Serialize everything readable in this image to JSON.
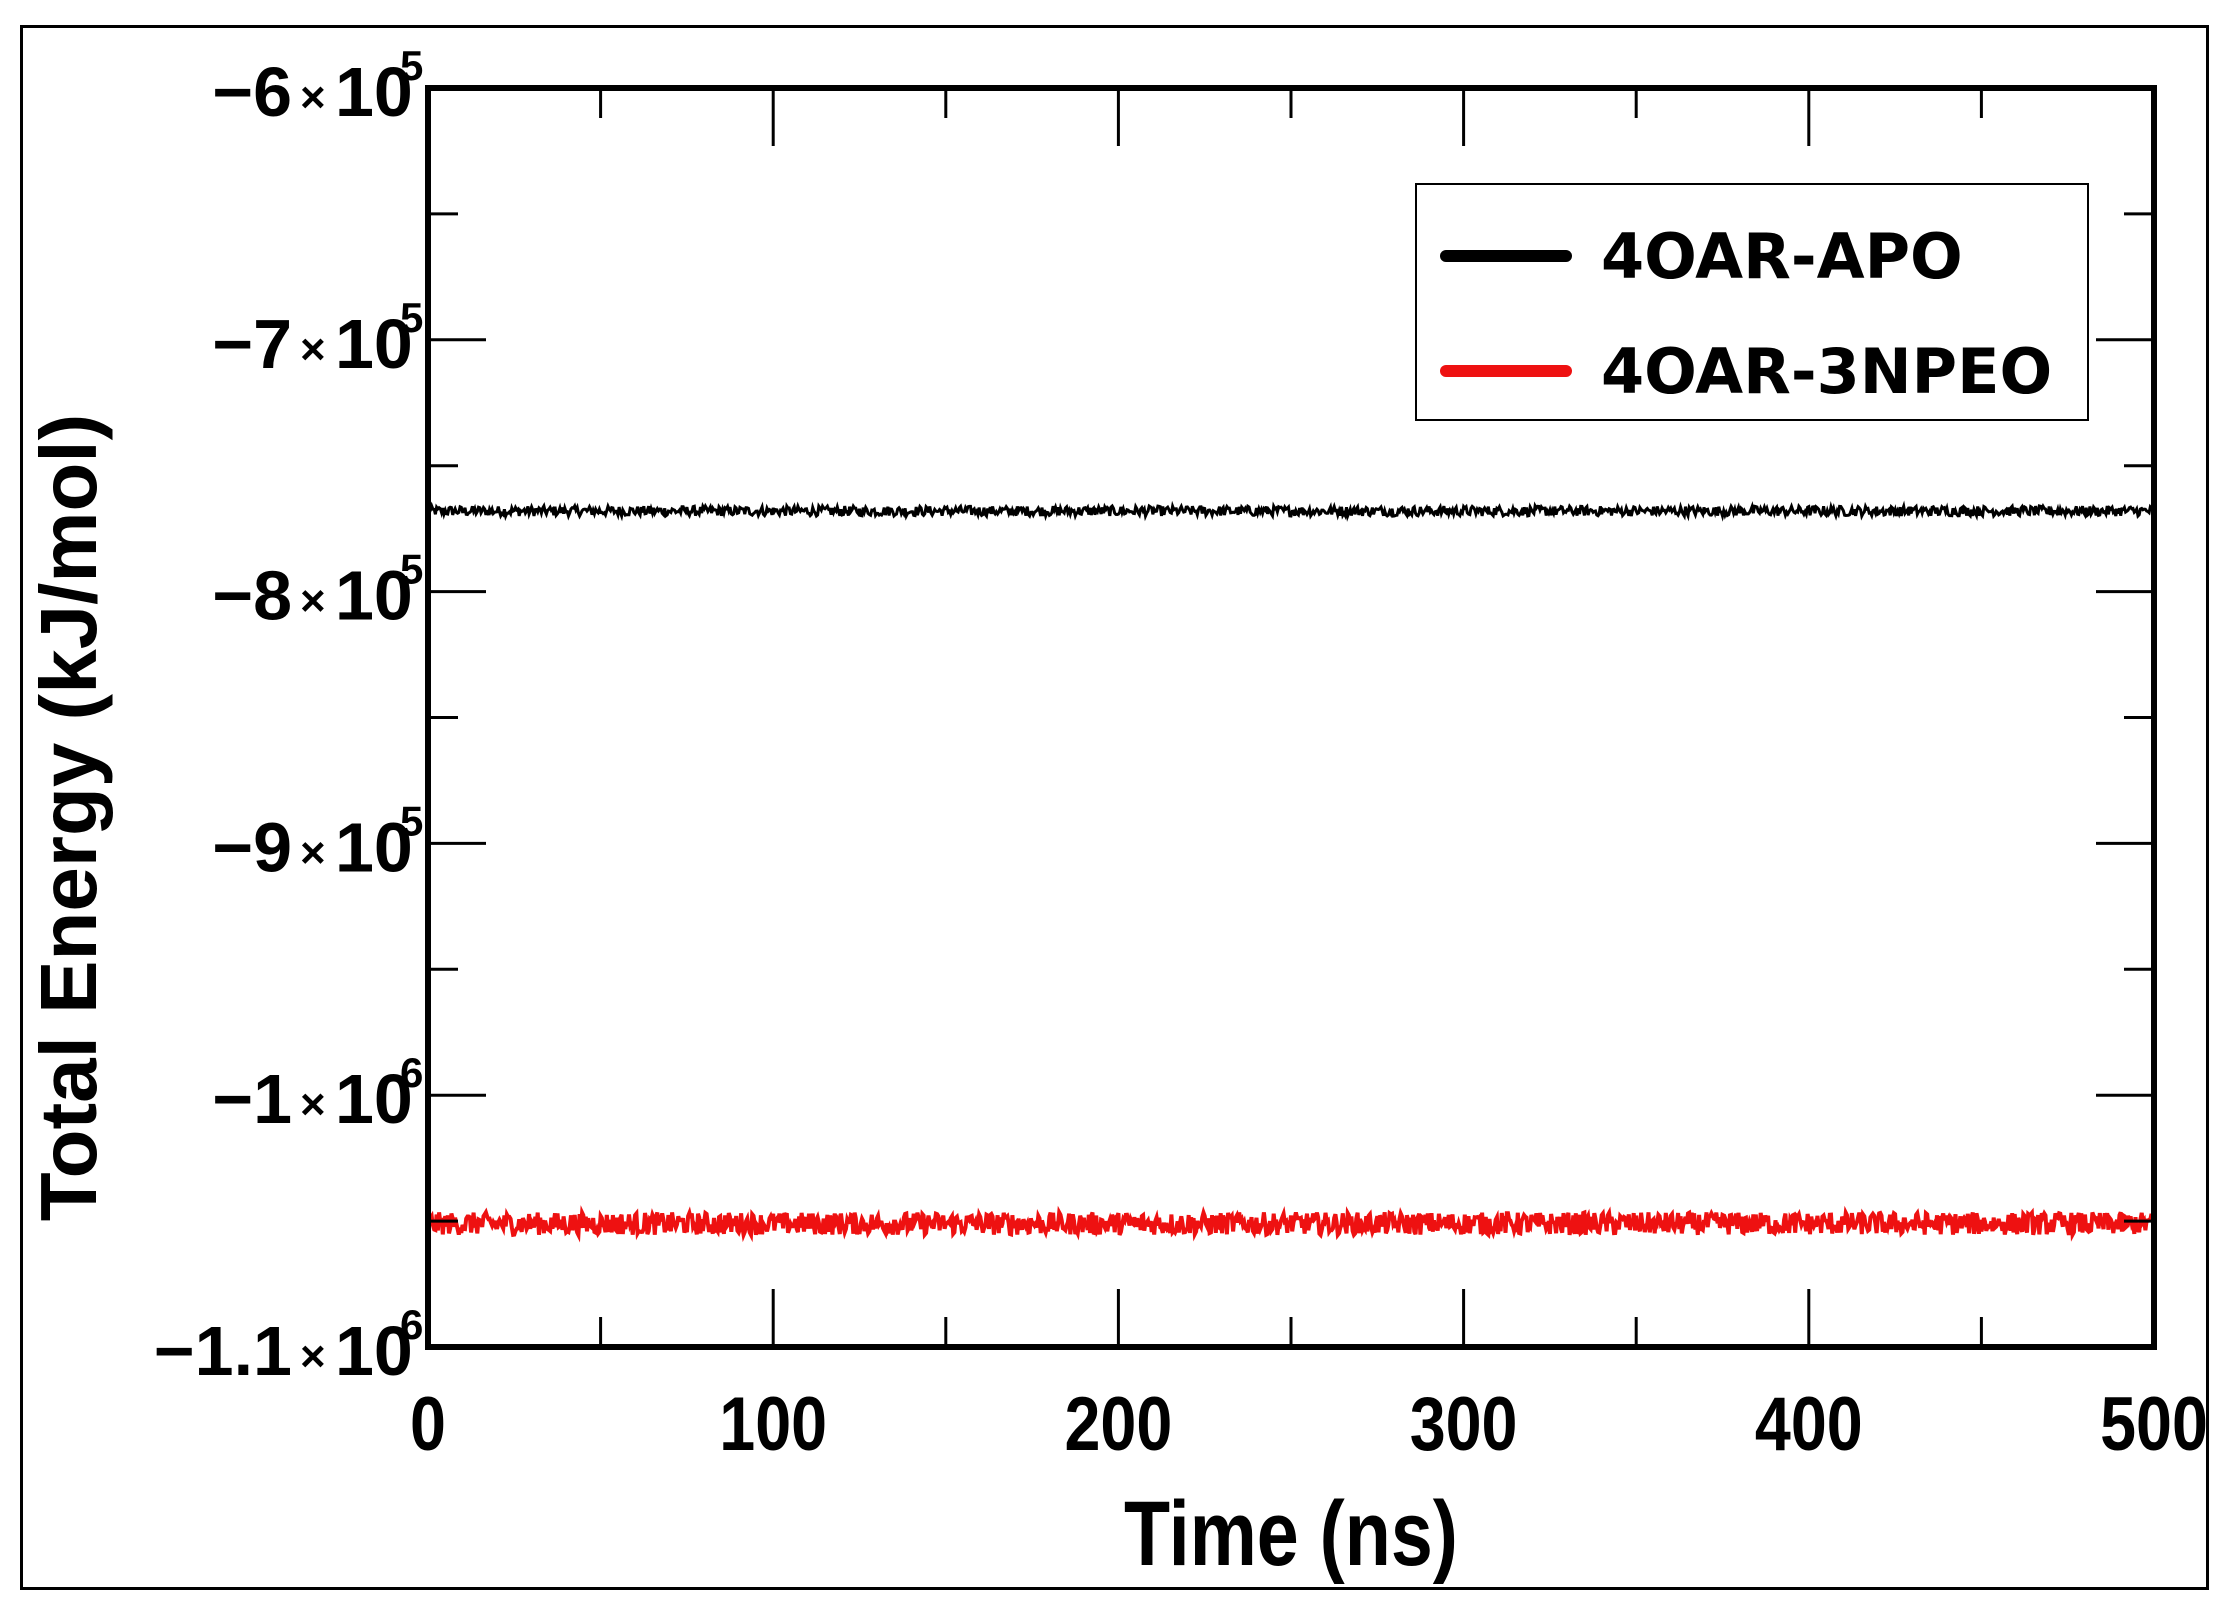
{
  "chart_data": {
    "type": "line",
    "xlabel": "Time (ns)",
    "ylabel": "Total Energy (kJ/mol)",
    "xlim": [
      0,
      500
    ],
    "ylim": [
      -1100000,
      -600000
    ],
    "x_ticks": [
      {
        "value": 0,
        "label": "0"
      },
      {
        "value": 100,
        "label": "100"
      },
      {
        "value": 200,
        "label": "200"
      },
      {
        "value": 300,
        "label": "300"
      },
      {
        "value": 400,
        "label": "400"
      },
      {
        "value": 500,
        "label": "500"
      }
    ],
    "y_ticks": [
      {
        "value": -600000,
        "mantissa": "−6",
        "times": "×",
        "base": "10",
        "exp": "5"
      },
      {
        "value": -700000,
        "mantissa": "−7",
        "times": "×",
        "base": "10",
        "exp": "5"
      },
      {
        "value": -800000,
        "mantissa": "−8",
        "times": "×",
        "base": "10",
        "exp": "5"
      },
      {
        "value": -900000,
        "mantissa": "−9",
        "times": "×",
        "base": "10",
        "exp": "5"
      },
      {
        "value": -1000000,
        "mantissa": "−1",
        "times": "×",
        "base": "10",
        "exp": "6"
      },
      {
        "value": -1100000,
        "mantissa": "−1.1",
        "times": "×",
        "base": "10",
        "exp": "6"
      }
    ],
    "legend_position": "top-right",
    "grid": false,
    "series": [
      {
        "name": "4OAR-APO",
        "color": "#000000",
        "mean": -768000,
        "fluctuation": 2000,
        "x_range": [
          0,
          500
        ]
      },
      {
        "name": "4OAR-3NPEO",
        "color": "#ee1111",
        "mean": -1051000,
        "fluctuation": 4500,
        "x_range": [
          0,
          500
        ]
      }
    ]
  }
}
